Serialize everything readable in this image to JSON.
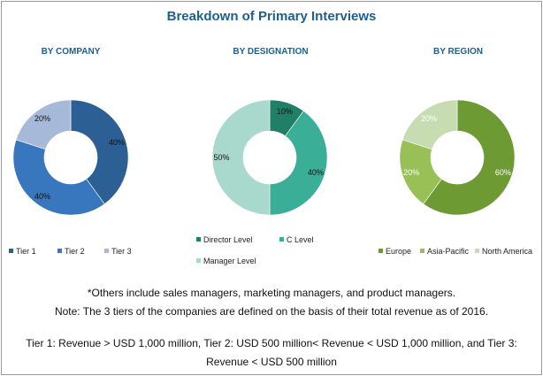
{
  "title": "Breakdown of Primary Interviews",
  "chart_data": [
    {
      "type": "pie",
      "subtitle": "BY COMPANY",
      "series": [
        {
          "name": "Tier 1",
          "value": 40,
          "label": "40%",
          "color": "#2c5f93"
        },
        {
          "name": "Tier 2",
          "value": 40,
          "label": "40%",
          "color": "#3877be"
        },
        {
          "name": "Tier 3",
          "value": 20,
          "label": "20%",
          "color": "#a7b9d9"
        }
      ]
    },
    {
      "type": "pie",
      "subtitle": "BY DESIGNATION",
      "series": [
        {
          "name": "Director Level",
          "value": 10,
          "label": "10%",
          "color": "#217e67"
        },
        {
          "name": "C Level",
          "value": 40,
          "label": "40%",
          "color": "#3aae96"
        },
        {
          "name": "Manager Level",
          "value": 50,
          "label": "50%",
          "color": "#a9d9cd"
        }
      ]
    },
    {
      "type": "pie",
      "subtitle": "BY REGION",
      "series": [
        {
          "name": "Europe",
          "value": 60,
          "label": "60%",
          "color": "#6e9a34"
        },
        {
          "name": "Asia-Pacific",
          "value": 20,
          "label": "20%",
          "color": "#98c057"
        },
        {
          "name": "North America",
          "value": 20,
          "label": "20%",
          "color": "#c7dcb0"
        }
      ]
    }
  ],
  "notes": {
    "line1": "*Others include sales managers, marketing managers, and product managers.",
    "line2": "Note: The 3 tiers of the companies are defined on the basis of their total revenue as of 2016.",
    "line3": "Tier 1: Revenue > USD 1,000 million, Tier 2: USD 500 million< Revenue < USD 1,000 million, and Tier 3:",
    "line4": "Revenue < USD 500 million"
  }
}
